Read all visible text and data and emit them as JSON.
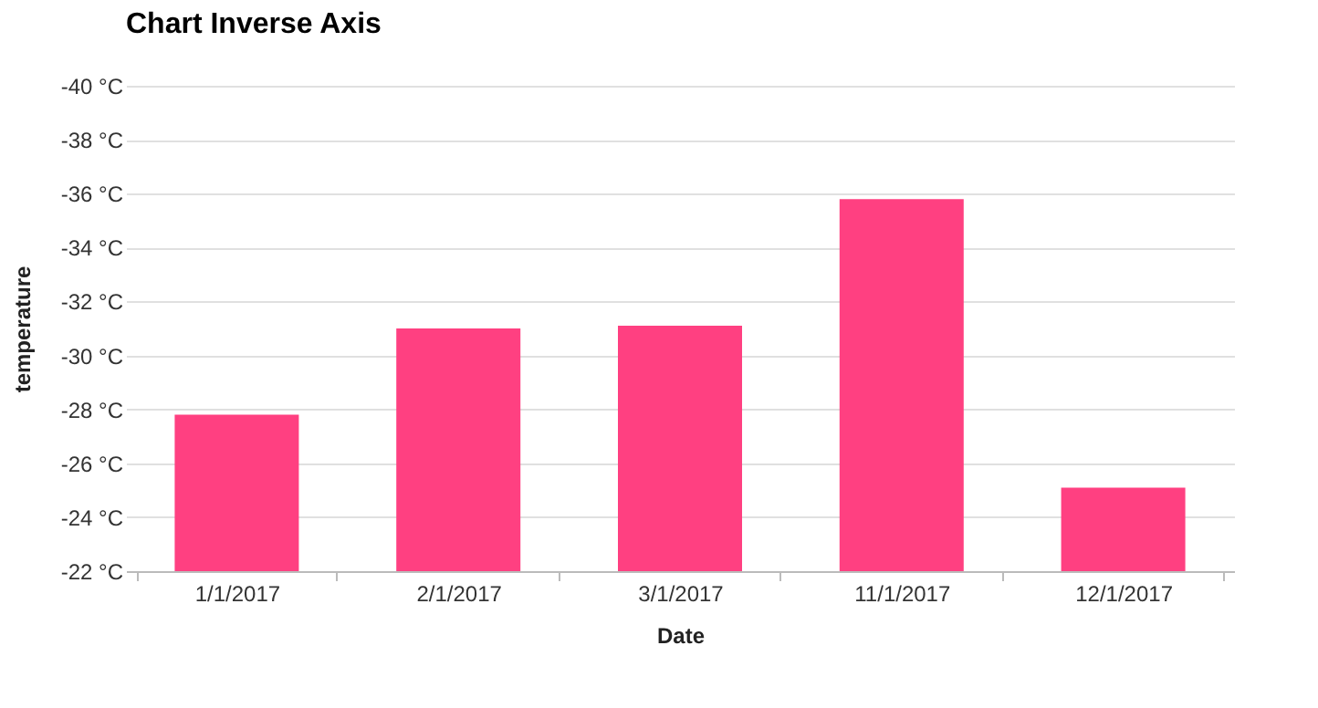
{
  "chart_data": {
    "type": "bar",
    "title": "Chart Inverse Axis",
    "xlabel": "Date",
    "ylabel": "temperature",
    "categories": [
      "1/1/2017",
      "2/1/2017",
      "3/1/2017",
      "11/1/2017",
      "12/1/2017"
    ],
    "values": [
      -27.8,
      -31.0,
      -31.1,
      -35.8,
      -25.1
    ],
    "color": "#ff4081",
    "ylim": [
      -22,
      -40
    ],
    "yticks": [
      {
        "value": -22,
        "label": "-22 °C"
      },
      {
        "value": -24,
        "label": "-24 °C"
      },
      {
        "value": -26,
        "label": "-26 °C"
      },
      {
        "value": -28,
        "label": "-28 °C"
      },
      {
        "value": -30,
        "label": "-30 °C"
      },
      {
        "value": -32,
        "label": "-32 °C"
      },
      {
        "value": -34,
        "label": "-34 °C"
      },
      {
        "value": -36,
        "label": "-36 °C"
      },
      {
        "value": -38,
        "label": "-38 °C"
      },
      {
        "value": -40,
        "label": "-40 °C"
      }
    ],
    "grid": "y"
  }
}
